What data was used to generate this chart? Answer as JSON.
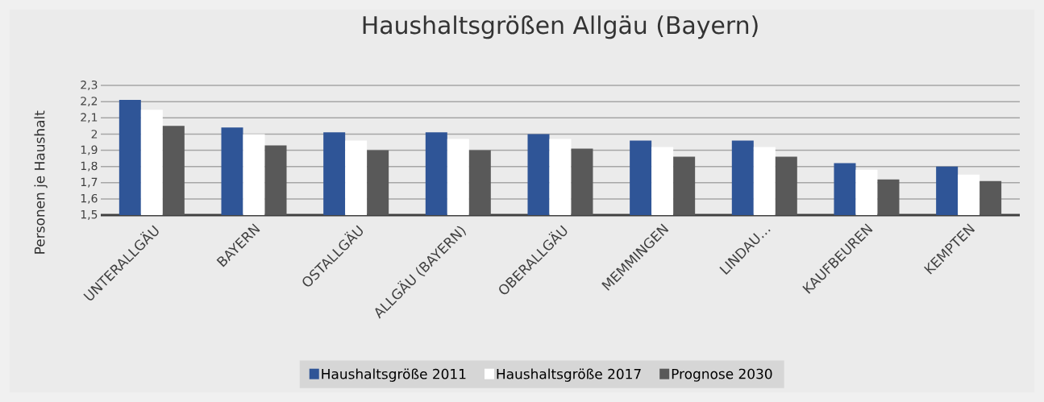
{
  "chart_data": {
    "type": "bar",
    "title": "Haushaltsgrößen Allgäu (Bayern)",
    "ylabel": "Personen je Haushalt",
    "categories": [
      "UNTERALLGÄU",
      "BAYERN",
      "OSTALLGÄU",
      "ALLGÄU (BAYERN)",
      "OBERALLGÄU",
      "MEMMINGEN",
      "LINDAU…",
      "KAUFBEUREN",
      "KEMPTEN"
    ],
    "series": [
      {
        "name": "Haushaltsgröße 2011",
        "color": "#2f5597",
        "values": [
          2.21,
          2.04,
          2.01,
          2.01,
          2.0,
          1.96,
          1.96,
          1.82,
          1.8
        ]
      },
      {
        "name": "Haushaltsgröße 2017",
        "color": "#ffffff",
        "values": [
          2.15,
          2.0,
          1.96,
          1.97,
          1.97,
          1.92,
          1.92,
          1.78,
          1.75
        ]
      },
      {
        "name": "Prognose 2030",
        "color": "#595959",
        "values": [
          2.05,
          1.93,
          1.9,
          1.9,
          1.91,
          1.86,
          1.86,
          1.72,
          1.71
        ]
      }
    ],
    "ylim": [
      1.5,
      2.3
    ],
    "yticks": [
      {
        "value": 1.5,
        "label": "1,5"
      },
      {
        "value": 1.6,
        "label": "1,6"
      },
      {
        "value": 1.7,
        "label": "1,7"
      },
      {
        "value": 1.8,
        "label": "1,8"
      },
      {
        "value": 1.9,
        "label": "1,9"
      },
      {
        "value": 2.0,
        "label": "2"
      },
      {
        "value": 2.1,
        "label": "2,1"
      },
      {
        "value": 2.2,
        "label": "2,2"
      },
      {
        "value": 2.3,
        "label": "2,3"
      }
    ],
    "grid": "y",
    "legend": "bottom"
  }
}
